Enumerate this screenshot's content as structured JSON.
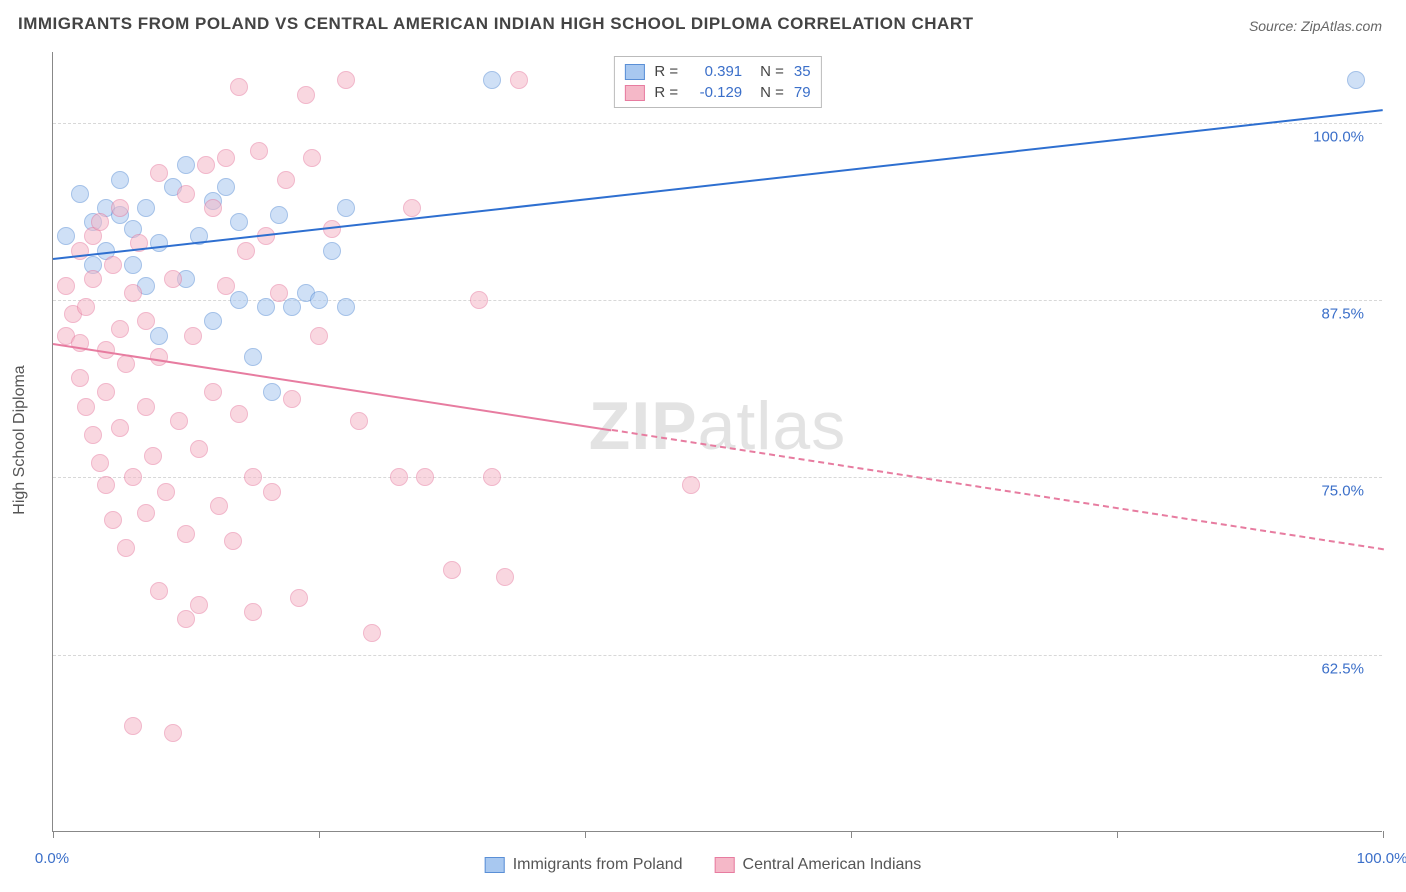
{
  "title": "IMMIGRANTS FROM POLAND VS CENTRAL AMERICAN INDIAN HIGH SCHOOL DIPLOMA CORRELATION CHART",
  "source": "Source: ZipAtlas.com",
  "watermark_zip": "ZIP",
  "watermark_atlas": "atlas",
  "yaxis_title": "High School Diploma",
  "chart": {
    "type": "scatter",
    "background_color": "#ffffff",
    "grid_color": "#d8d8d8",
    "axis_color": "#888888",
    "xlim": [
      0,
      100
    ],
    "ylim": [
      50,
      105
    ],
    "xticks": [
      0,
      20,
      40,
      60,
      80,
      100
    ],
    "xtick_labels": {
      "0": "0.0%",
      "100": "100.0%"
    },
    "yticks": [
      62.5,
      75.0,
      87.5,
      100.0
    ],
    "ytick_labels": [
      "62.5%",
      "75.0%",
      "87.5%",
      "100.0%"
    ],
    "point_radius": 9,
    "trend_width": 2
  },
  "series": [
    {
      "name": "Immigrants from Poland",
      "fill": "#a8c8f0",
      "stroke": "#5a8fd6",
      "line_color": "#2e6fd0",
      "R": "0.391",
      "N": "35",
      "trend": {
        "x1": 0,
        "y1": 90.5,
        "x2": 100,
        "y2": 101,
        "solid_until": 100
      },
      "points": [
        [
          1,
          92
        ],
        [
          2,
          95
        ],
        [
          3,
          93
        ],
        [
          3,
          90
        ],
        [
          4,
          94
        ],
        [
          4,
          91
        ],
        [
          5,
          93.5
        ],
        [
          5,
          96
        ],
        [
          6,
          90
        ],
        [
          6,
          92.5
        ],
        [
          7,
          94
        ],
        [
          7,
          88.5
        ],
        [
          8,
          91.5
        ],
        [
          8,
          85
        ],
        [
          9,
          95.5
        ],
        [
          10,
          97
        ],
        [
          10,
          89
        ],
        [
          11,
          92
        ],
        [
          12,
          94.5
        ],
        [
          12,
          86
        ],
        [
          13,
          95.5
        ],
        [
          14,
          87.5
        ],
        [
          14,
          93
        ],
        [
          15,
          83.5
        ],
        [
          16,
          87
        ],
        [
          16.5,
          81
        ],
        [
          17,
          93.5
        ],
        [
          18,
          87
        ],
        [
          19,
          88
        ],
        [
          20,
          87.5
        ],
        [
          21,
          91
        ],
        [
          22,
          87
        ],
        [
          22,
          94
        ],
        [
          33,
          103
        ],
        [
          98,
          103
        ]
      ]
    },
    {
      "name": "Central American Indians",
      "fill": "#f5b8c8",
      "stroke": "#e77ca0",
      "line_color": "#e77ca0",
      "R": "-0.129",
      "N": "79",
      "trend": {
        "x1": 0,
        "y1": 84.5,
        "x2": 100,
        "y2": 70,
        "solid_until": 42
      },
      "points": [
        [
          1,
          88.5
        ],
        [
          1,
          85
        ],
        [
          1.5,
          86.5
        ],
        [
          2,
          84.5
        ],
        [
          2,
          82
        ],
        [
          2,
          91
        ],
        [
          2.5,
          87
        ],
        [
          2.5,
          80
        ],
        [
          3,
          92
        ],
        [
          3,
          78
        ],
        [
          3,
          89
        ],
        [
          3.5,
          93
        ],
        [
          3.5,
          76
        ],
        [
          4,
          84
        ],
        [
          4,
          81
        ],
        [
          4,
          74.5
        ],
        [
          4.5,
          90
        ],
        [
          4.5,
          72
        ],
        [
          5,
          85.5
        ],
        [
          5,
          78.5
        ],
        [
          5,
          94
        ],
        [
          5.5,
          83
        ],
        [
          5.5,
          70
        ],
        [
          6,
          88
        ],
        [
          6,
          75
        ],
        [
          6,
          57.5
        ],
        [
          6.5,
          91.5
        ],
        [
          7,
          80
        ],
        [
          7,
          72.5
        ],
        [
          7,
          86
        ],
        [
          7.5,
          76.5
        ],
        [
          8,
          96.5
        ],
        [
          8,
          67
        ],
        [
          8,
          83.5
        ],
        [
          8.5,
          74
        ],
        [
          9,
          89
        ],
        [
          9,
          57
        ],
        [
          9.5,
          79
        ],
        [
          10,
          95
        ],
        [
          10,
          71
        ],
        [
          10,
          65
        ],
        [
          10.5,
          85
        ],
        [
          11,
          77
        ],
        [
          11,
          66
        ],
        [
          11.5,
          97
        ],
        [
          12,
          81
        ],
        [
          12,
          94
        ],
        [
          12.5,
          73
        ],
        [
          13,
          88.5
        ],
        [
          13,
          97.5
        ],
        [
          13.5,
          70.5
        ],
        [
          14,
          102.5
        ],
        [
          14,
          79.5
        ],
        [
          14.5,
          91
        ],
        [
          15,
          75
        ],
        [
          15,
          65.5
        ],
        [
          15.5,
          98
        ],
        [
          16,
          92
        ],
        [
          16.5,
          74
        ],
        [
          17,
          88
        ],
        [
          17.5,
          96
        ],
        [
          18,
          80.5
        ],
        [
          18.5,
          66.5
        ],
        [
          19,
          102
        ],
        [
          19.5,
          97.5
        ],
        [
          20,
          85
        ],
        [
          21,
          92.5
        ],
        [
          22,
          103
        ],
        [
          23,
          79
        ],
        [
          24,
          64
        ],
        [
          26,
          75
        ],
        [
          27,
          94
        ],
        [
          28,
          75
        ],
        [
          30,
          68.5
        ],
        [
          32,
          87.5
        ],
        [
          33,
          75
        ],
        [
          34,
          68
        ],
        [
          35,
          103
        ],
        [
          48,
          74.5
        ]
      ]
    }
  ],
  "legend_labels": {
    "r": "R  =",
    "n": "N  ="
  }
}
